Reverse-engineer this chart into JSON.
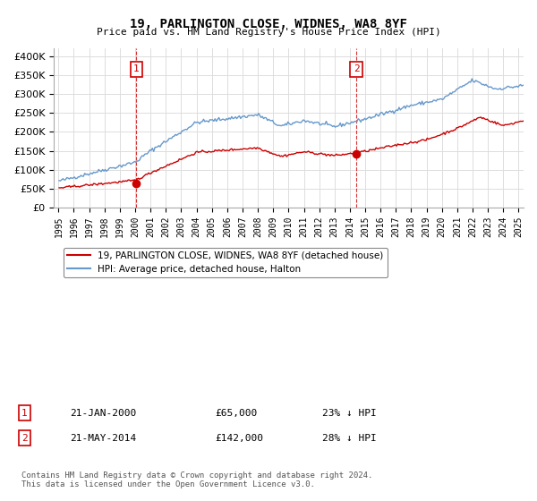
{
  "title": "19, PARLINGTON CLOSE, WIDNES, WA8 8YF",
  "subtitle": "Price paid vs. HM Land Registry's House Price Index (HPI)",
  "legend_line1": "19, PARLINGTON CLOSE, WIDNES, WA8 8YF (detached house)",
  "legend_line2": "HPI: Average price, detached house, Halton",
  "annotation1_label": "1",
  "annotation1_date": "21-JAN-2000",
  "annotation1_price": "£65,000",
  "annotation1_hpi": "23% ↓ HPI",
  "annotation2_label": "2",
  "annotation2_date": "21-MAY-2014",
  "annotation2_price": "£142,000",
  "annotation2_hpi": "28% ↓ HPI",
  "footer": "Contains HM Land Registry data © Crown copyright and database right 2024.\nThis data is licensed under the Open Government Licence v3.0.",
  "hpi_color": "#6699cc",
  "price_color": "#cc0000",
  "annotation_color": "#cc0000",
  "vline_color": "#cc0000",
  "background_color": "#ffffff",
  "grid_color": "#dddddd",
  "ylim": [
    0,
    420000
  ],
  "yticks": [
    0,
    50000,
    100000,
    150000,
    200000,
    250000,
    300000,
    350000,
    400000
  ],
  "x_start_year": 1995,
  "x_end_year": 2025
}
